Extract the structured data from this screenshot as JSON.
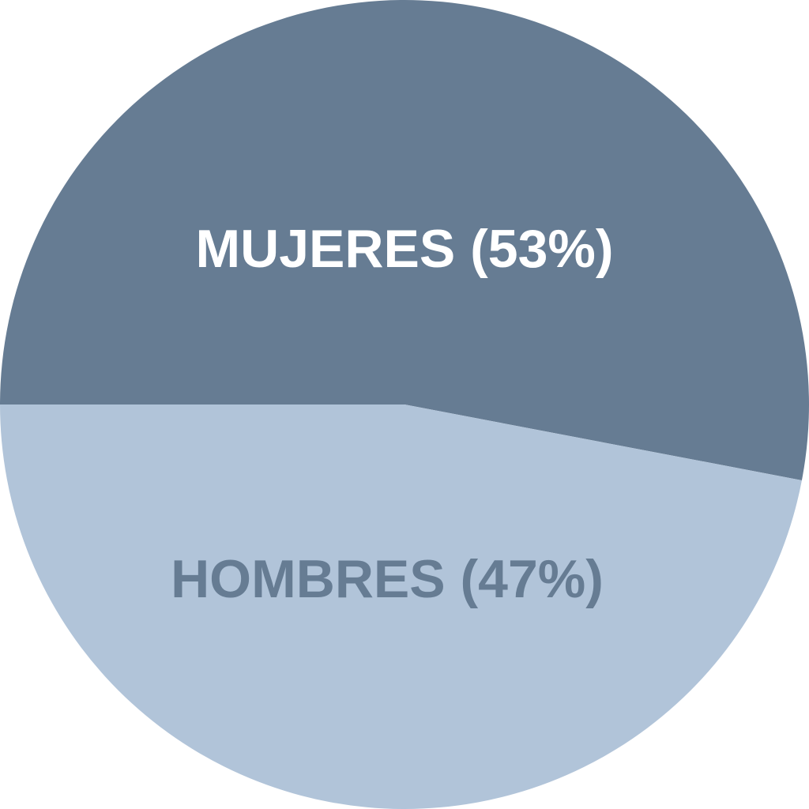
{
  "chart_data": {
    "type": "pie",
    "title": "",
    "start": "left, clockwise",
    "slices": [
      {
        "label": "MUJERES (53%)",
        "value": 53,
        "color": "#667c93",
        "label_color": "#ffffff"
      },
      {
        "label": "HOMBRES (47%)",
        "value": 47,
        "color": "#b1c4d9",
        "label_color": "#667c93"
      }
    ]
  }
}
